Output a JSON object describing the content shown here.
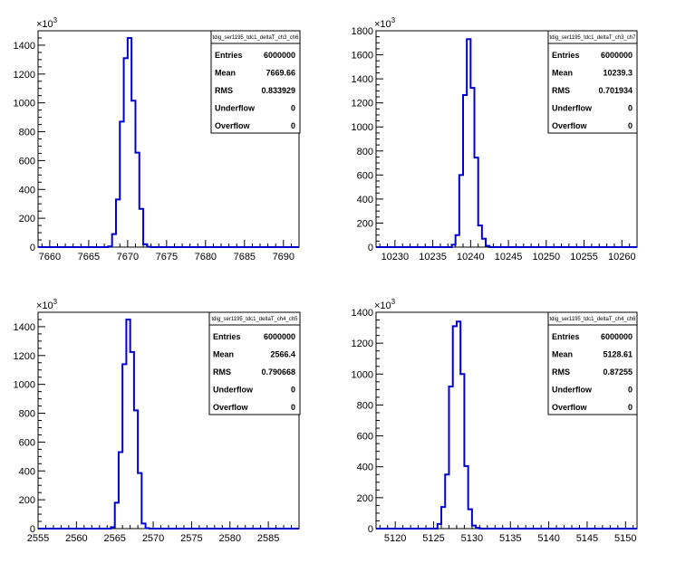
{
  "chart_data": [
    {
      "type": "histogram",
      "title": "tdig_ser1195_tdc1_deltaT_ch3_ch6",
      "y_exponent": "3",
      "xlim": [
        7658.5,
        7692
      ],
      "ylim": [
        0,
        1500
      ],
      "x_ticks": [
        7660,
        7665,
        7670,
        7675,
        7680,
        7685,
        7690
      ],
      "y_ticks": [
        0,
        200,
        400,
        600,
        800,
        1000,
        1200,
        1400
      ],
      "bin_width": 0.5,
      "bin_start": 7667.5,
      "values": [
        5,
        90,
        330,
        870,
        1310,
        1450,
        1015,
        655,
        265,
        20,
        2
      ],
      "stats": {
        "labels": [
          "Entries",
          "Mean",
          "RMS",
          "Underflow",
          "Overflow"
        ],
        "values": [
          "6000000",
          "7669.66",
          "0.833929",
          "0",
          "0"
        ]
      }
    },
    {
      "type": "histogram",
      "title": "tdig_ser1195_tdc1_deltaT_ch3_ch7",
      "y_exponent": "3",
      "xlim": [
        10227.5,
        10262
      ],
      "ylim": [
        0,
        1800
      ],
      "x_ticks": [
        10230,
        10235,
        10240,
        10245,
        10250,
        10255,
        10260
      ],
      "y_ticks": [
        0,
        200,
        400,
        600,
        800,
        1000,
        1200,
        1400,
        1600,
        1800
      ],
      "bin_width": 0.5,
      "bin_start": 10237.5,
      "values": [
        20,
        100,
        600,
        1265,
        1730,
        1325,
        745,
        180,
        70,
        10
      ],
      "stats": {
        "labels": [
          "Entries",
          "Mean",
          "RMS",
          "Underflow",
          "Overflow"
        ],
        "values": [
          "6000000",
          "10239.3",
          "0.701934",
          "0",
          "0"
        ]
      }
    },
    {
      "type": "histogram",
      "title": "tdig_ser1195_tdc1_deltaT_ch4_ch5",
      "y_exponent": "3",
      "xlim": [
        2555,
        2589
      ],
      "ylim": [
        0,
        1500
      ],
      "x_ticks": [
        2555,
        2560,
        2565,
        2570,
        2575,
        2580,
        2585
      ],
      "y_ticks": [
        0,
        200,
        400,
        600,
        800,
        1000,
        1200,
        1400
      ],
      "bin_width": 0.5,
      "bin_start": 2564.5,
      "values": [
        10,
        180,
        530,
        1140,
        1450,
        1225,
        820,
        385,
        35,
        3
      ],
      "stats": {
        "labels": [
          "Entries",
          "Mean",
          "RMS",
          "Underflow",
          "Overflow"
        ],
        "values": [
          "6000000",
          "2566.4",
          "0.790668",
          "0",
          "0"
        ]
      }
    },
    {
      "type": "histogram",
      "title": "tdig_ser1195_tdc1_deltaT_ch4_ch6",
      "y_exponent": "3",
      "xlim": [
        5117.5,
        5151.5
      ],
      "ylim": [
        0,
        1400
      ],
      "x_ticks": [
        5120,
        5125,
        5130,
        5135,
        5140,
        5145,
        5150
      ],
      "y_ticks": [
        0,
        200,
        400,
        600,
        800,
        1000,
        1200,
        1400
      ],
      "bin_width": 0.5,
      "bin_start": 5125.5,
      "values": [
        30,
        140,
        350,
        920,
        1310,
        1340,
        1000,
        405,
        125,
        20,
        5
      ],
      "stats": {
        "labels": [
          "Entries",
          "Mean",
          "RMS",
          "Underflow",
          "Overflow"
        ],
        "values": [
          "6000000",
          "5128.61",
          "0.87255",
          "0",
          "0"
        ]
      }
    }
  ]
}
